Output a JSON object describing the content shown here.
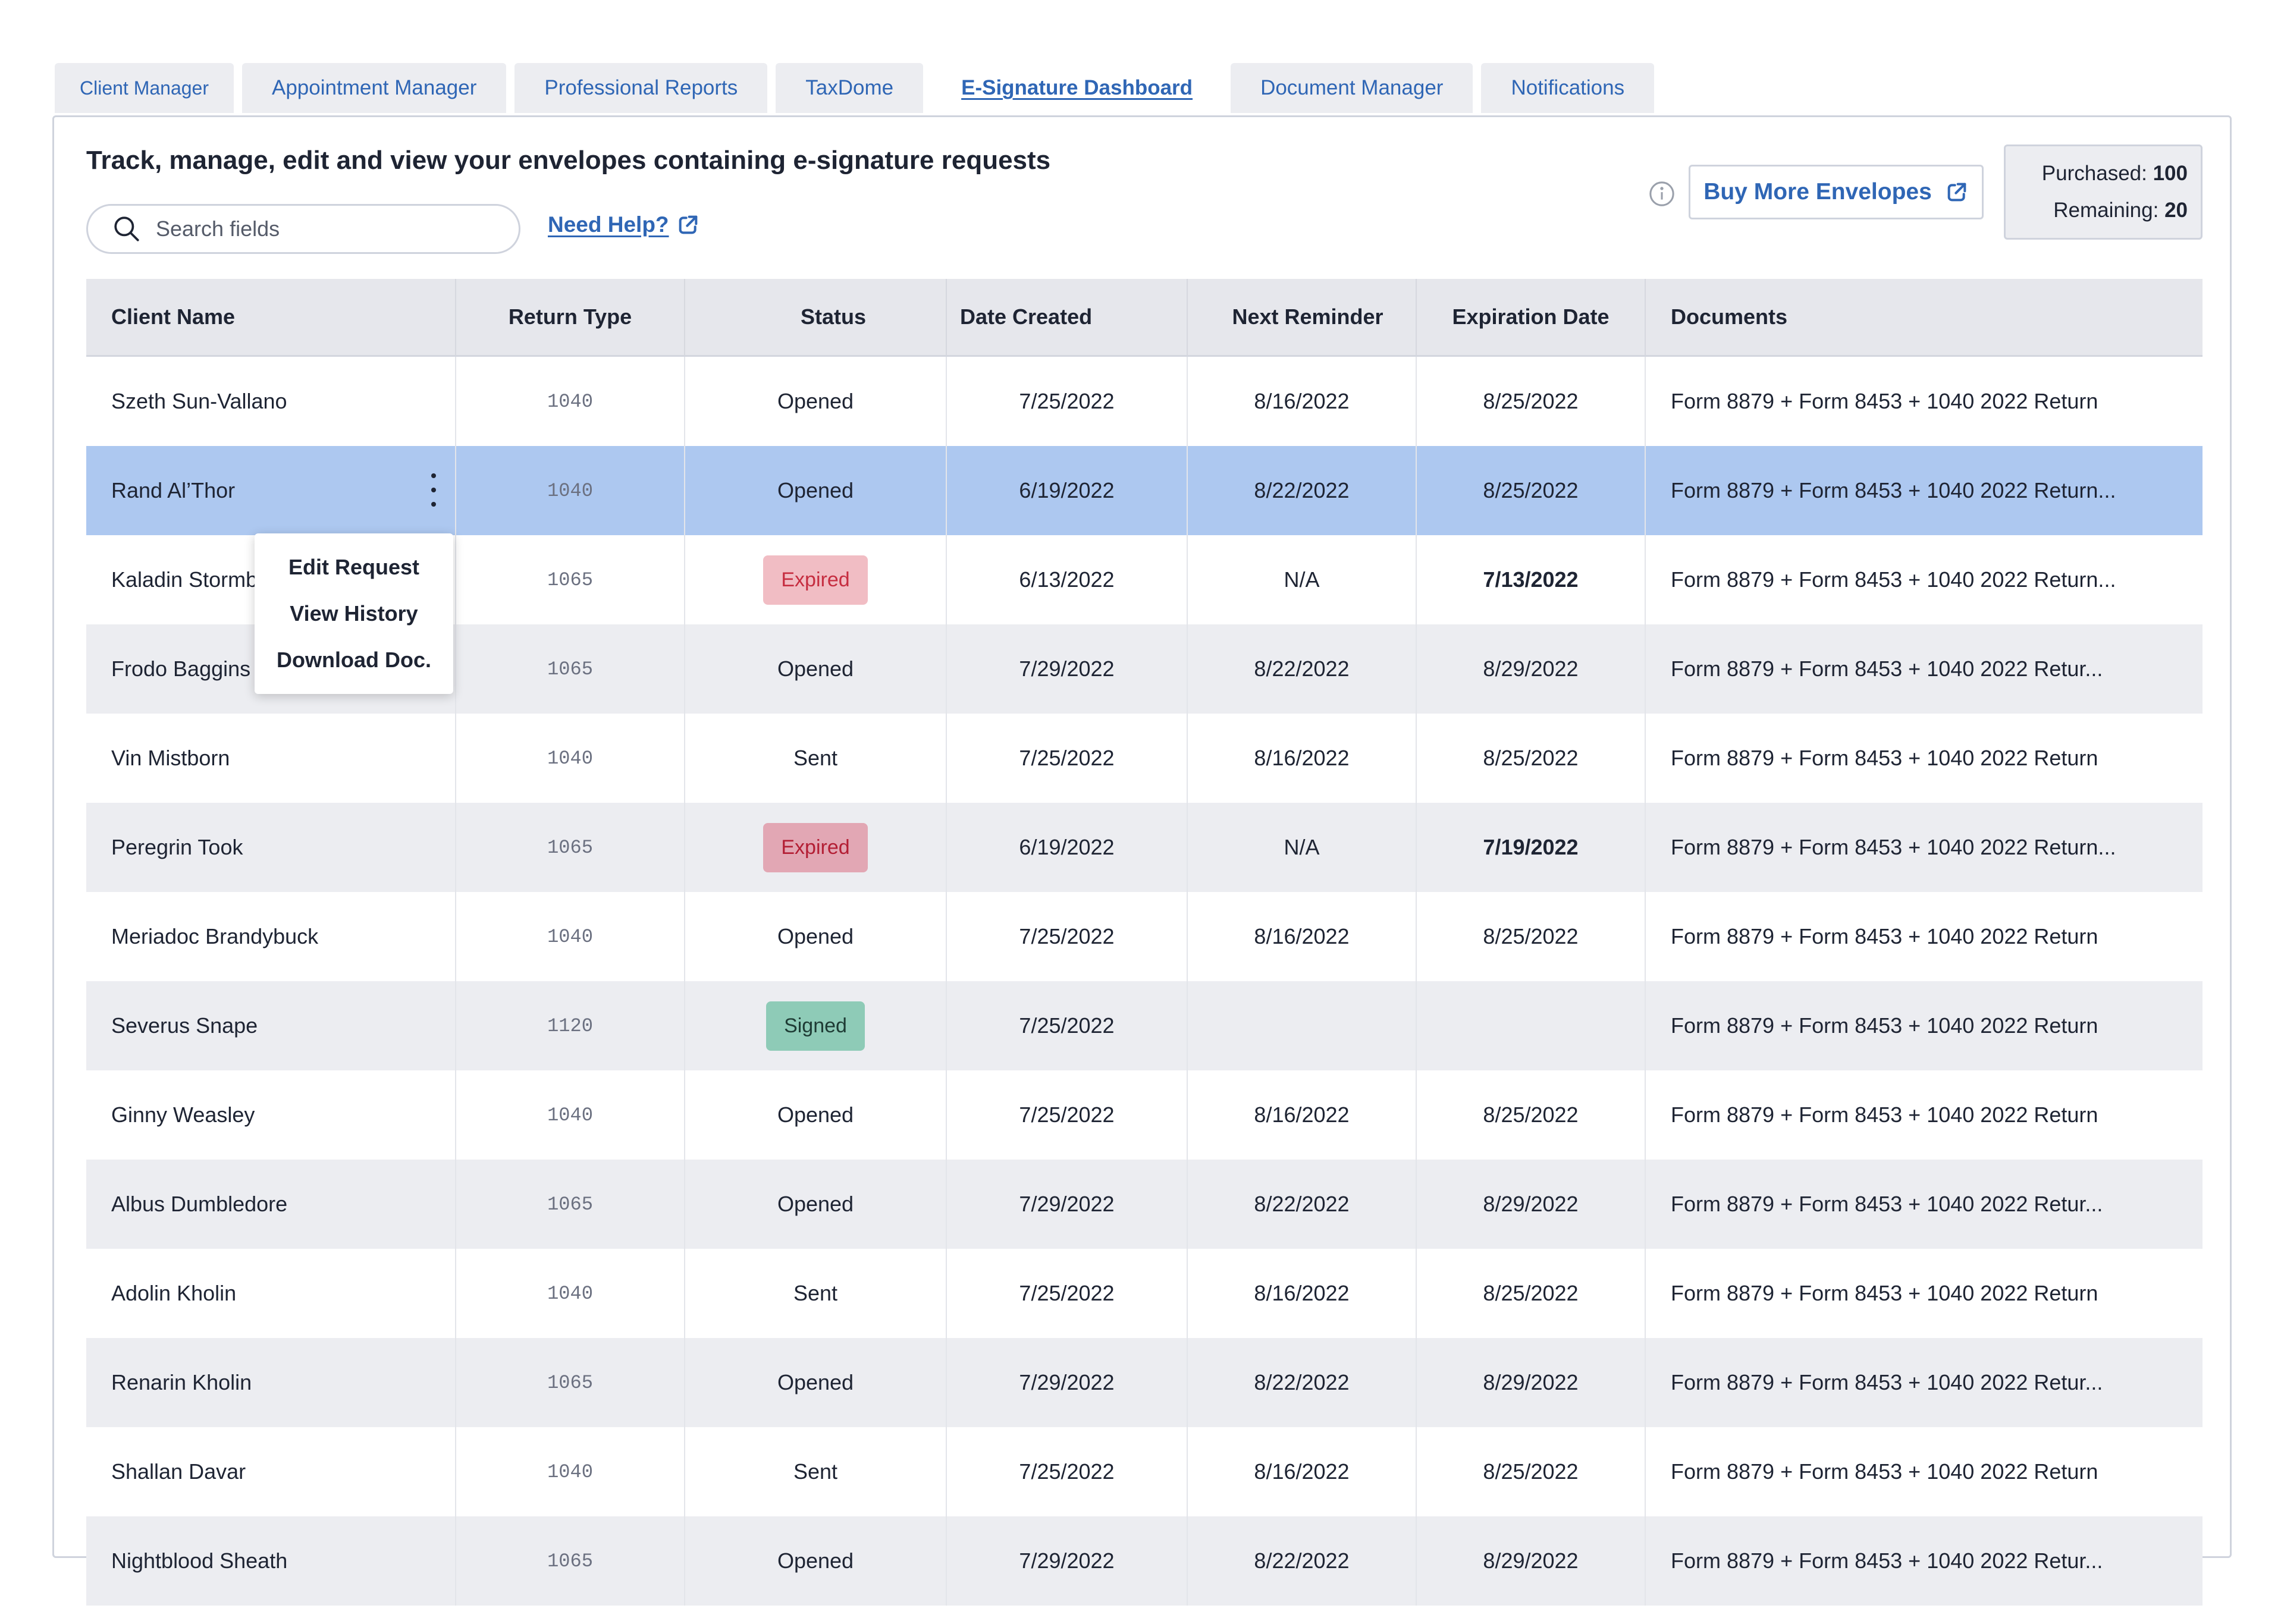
{
  "tabs": [
    {
      "label": "Client Manager"
    },
    {
      "label": "Appointment Manager"
    },
    {
      "label": "Professional Reports"
    },
    {
      "label": "TaxDome"
    },
    {
      "label": "E-Signature Dashboard",
      "active": true
    },
    {
      "label": "Document Manager"
    },
    {
      "label": "Notifications"
    }
  ],
  "header": {
    "title": "Track, manage, edit and view your envelopes containing e-signature requests",
    "search_placeholder": "Search fields",
    "help_label": "Need Help?",
    "buy_label": "Buy More Envelopes",
    "purchased_label": "Purchased:",
    "purchased_value": "100",
    "remaining_label": "Remaining:",
    "remaining_value": "20"
  },
  "table": {
    "columns": [
      "Client Name",
      "Return Type",
      "Status",
      "Date Created",
      "Next Reminder",
      "Expiration Date",
      "Documents"
    ],
    "rows": [
      {
        "client": "Szeth Sun-Vallano",
        "type": "1040",
        "status": "Opened",
        "created": "7/25/2022",
        "reminder": "8/16/2022",
        "expiration": "8/25/2022",
        "documents": "Form 8879 + Form 8453 + 1040 2022 Return"
      },
      {
        "client": "Rand Al’Thor",
        "type": "1040",
        "status": "Opened",
        "created": "6/19/2022",
        "reminder": "8/22/2022",
        "expiration": "8/25/2022",
        "documents": "Form 8879 + Form 8453 + 1040 2022 Return..."
      },
      {
        "client": "Kaladin Stormb",
        "type": "1065",
        "status": "Expired",
        "created": "6/13/2022",
        "reminder": "N/A",
        "expiration": "7/13/2022",
        "documents": "Form 8879 + Form 8453 + 1040 2022 Return..."
      },
      {
        "client": "Frodo Baggins",
        "type": "1065",
        "status": "Opened",
        "created": "7/29/2022",
        "reminder": "8/22/2022",
        "expiration": "8/29/2022",
        "documents": "Form 8879 + Form 8453 + 1040 2022 Retur..."
      },
      {
        "client": "Vin Mistborn",
        "type": "1040",
        "status": "Sent",
        "created": "7/25/2022",
        "reminder": "8/16/2022",
        "expiration": "8/25/2022",
        "documents": "Form 8879 + Form 8453 + 1040 2022 Return"
      },
      {
        "client": "Peregrin Took",
        "type": "1065",
        "status": "Expired",
        "created": "6/19/2022",
        "reminder": "N/A",
        "expiration": "7/19/2022",
        "documents": "Form 8879 + Form 8453 + 1040 2022 Return..."
      },
      {
        "client": "Meriadoc Brandybuck",
        "type": "1040",
        "status": "Opened",
        "created": "7/25/2022",
        "reminder": "8/16/2022",
        "expiration": "8/25/2022",
        "documents": "Form 8879 + Form 8453 + 1040 2022 Return"
      },
      {
        "client": "Severus Snape",
        "type": "1120",
        "status": "Signed",
        "created": "7/25/2022",
        "reminder": "",
        "expiration": "",
        "documents": "Form 8879 + Form 8453 + 1040 2022 Return"
      },
      {
        "client": "Ginny Weasley",
        "type": "1040",
        "status": "Opened",
        "created": "7/25/2022",
        "reminder": "8/16/2022",
        "expiration": "8/25/2022",
        "documents": "Form 8879 + Form 8453 + 1040 2022 Return"
      },
      {
        "client": "Albus Dumbledore",
        "type": "1065",
        "status": "Opened",
        "created": "7/29/2022",
        "reminder": "8/22/2022",
        "expiration": "8/29/2022",
        "documents": "Form 8879 + Form 8453 + 1040 2022 Retur..."
      },
      {
        "client": "Adolin Kholin",
        "type": "1040",
        "status": "Sent",
        "created": "7/25/2022",
        "reminder": "8/16/2022",
        "expiration": "8/25/2022",
        "documents": "Form 8879 + Form 8453 + 1040 2022 Return"
      },
      {
        "client": "Renarin Kholin",
        "type": "1065",
        "status": "Opened",
        "created": "7/29/2022",
        "reminder": "8/22/2022",
        "expiration": "8/29/2022",
        "documents": "Form 8879 + Form 8453 + 1040 2022 Retur..."
      },
      {
        "client": "Shallan Davar",
        "type": "1040",
        "status": "Sent",
        "created": "7/25/2022",
        "reminder": "8/16/2022",
        "expiration": "8/25/2022",
        "documents": "Form 8879 + Form 8453 + 1040 2022 Return"
      },
      {
        "client": "Nightblood Sheath",
        "type": "1065",
        "status": "Opened",
        "created": "7/29/2022",
        "reminder": "8/22/2022",
        "expiration": "8/29/2022",
        "documents": "Form 8879 + Form 8453 + 1040 2022 Retur..."
      }
    ]
  },
  "context_menu": {
    "items": [
      "Edit Request",
      "View History",
      "Download Doc."
    ]
  },
  "icons": {
    "search": "search-icon",
    "external_link": "external-link-icon",
    "info": "info-icon",
    "more": "more-vertical-icon"
  },
  "colors": {
    "accent": "#2f66b5",
    "selected_row": "#adc8f0",
    "expired_badge": "#f1bdc4",
    "signed_badge": "#8ecbb7"
  }
}
